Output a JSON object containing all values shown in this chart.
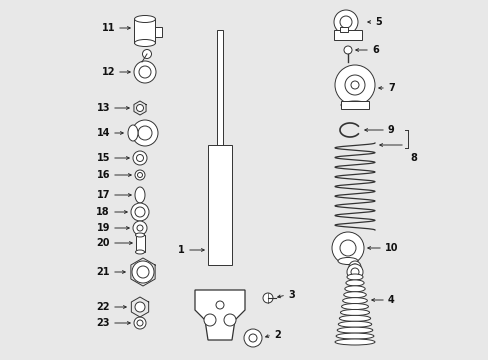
{
  "bg_color": "#e8e8e8",
  "line_color": "#333333",
  "text_color": "#111111",
  "figsize": [
    4.89,
    3.6
  ],
  "dpi": 100,
  "arrow_color": "#222222",
  "lw": 0.7,
  "font_size": 7.0
}
